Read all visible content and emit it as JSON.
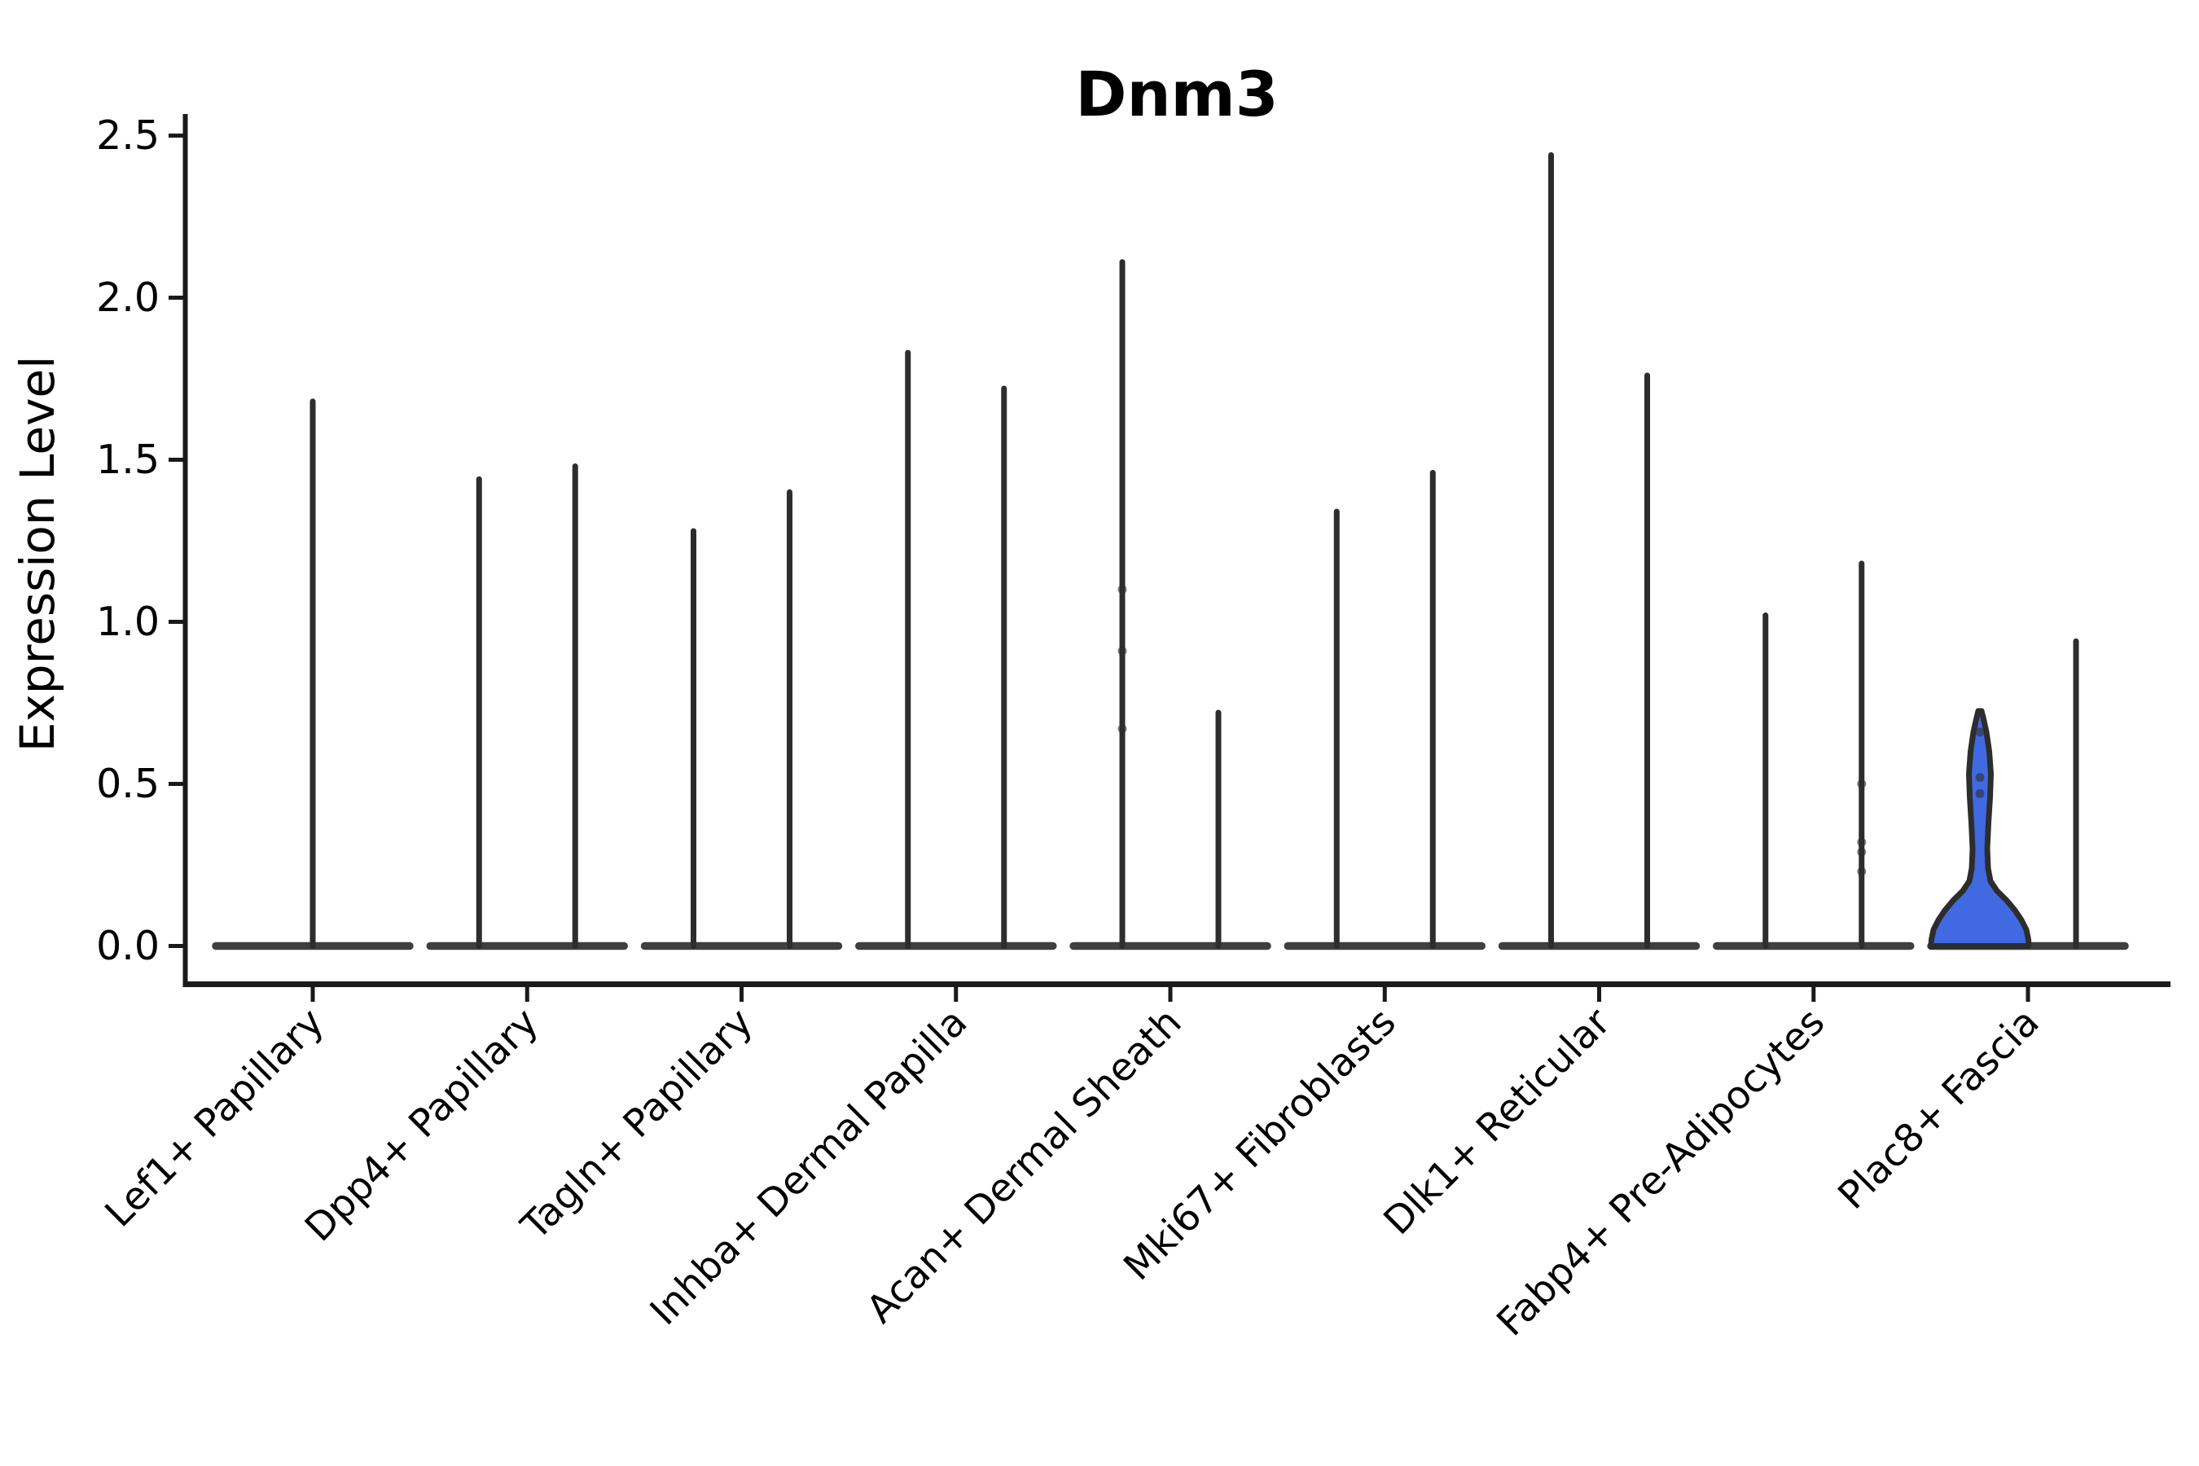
{
  "chart_data": {
    "type": "violin",
    "title": "Dnm3",
    "xlabel": "",
    "ylabel": "Expression Level",
    "ylim": [
      0,
      2.57
    ],
    "yticks": [
      0.0,
      0.5,
      1.0,
      1.5,
      2.0,
      2.5
    ],
    "grid": false,
    "legend": null,
    "categories": [
      "Lef1+ Papillary",
      "Dpp4+ Papillary",
      "Tagln+ Papillary",
      "Inhba+ Dermal Papilla",
      "Acan+ Dermal Sheath",
      "Mki67+ Fibroblasts",
      "Dlk1+ Reticular",
      "Fabp4+ Pre-Adipocytes",
      "Plac8+ Fascia"
    ],
    "violins": [
      {
        "category": "Lef1+ Papillary",
        "glyphs": [
          {
            "pos": "center",
            "max": 1.68
          }
        ]
      },
      {
        "category": "Dpp4+ Papillary",
        "glyphs": [
          {
            "pos": "left",
            "max": 1.44
          },
          {
            "pos": "right",
            "max": 1.48
          }
        ]
      },
      {
        "category": "Tagln+ Papillary",
        "glyphs": [
          {
            "pos": "left",
            "max": 1.28
          },
          {
            "pos": "right",
            "max": 1.4
          }
        ]
      },
      {
        "category": "Inhba+ Dermal Papilla",
        "glyphs": [
          {
            "pos": "left",
            "max": 1.83
          },
          {
            "pos": "right",
            "max": 1.72
          }
        ]
      },
      {
        "category": "Acan+ Dermal Sheath",
        "glyphs": [
          {
            "pos": "left",
            "max": 2.11,
            "dots": [
              1.1,
              0.91,
              0.67
            ]
          },
          {
            "pos": "right",
            "max": 0.72
          }
        ]
      },
      {
        "category": "Mki67+ Fibroblasts",
        "glyphs": [
          {
            "pos": "left",
            "max": 1.34
          },
          {
            "pos": "right",
            "max": 1.46
          }
        ]
      },
      {
        "category": "Dlk1+ Reticular",
        "glyphs": [
          {
            "pos": "left",
            "max": 2.44
          },
          {
            "pos": "right",
            "max": 1.76
          }
        ]
      },
      {
        "category": "Fabp4+ Pre-Adipocytes",
        "glyphs": [
          {
            "pos": "left",
            "max": 1.02
          },
          {
            "pos": "right",
            "max": 1.18,
            "dots": [
              0.5,
              0.32,
              0.29,
              0.23
            ]
          }
        ]
      },
      {
        "category": "Plac8+ Fascia",
        "glyphs": [
          {
            "pos": "left",
            "max": 0.72,
            "shape": "violin",
            "fill": "#4169E1",
            "profile": [
              [
                0.0,
                60
              ],
              [
                0.02,
                59.5
              ],
              [
                0.05,
                57
              ],
              [
                0.08,
                51
              ],
              [
                0.11,
                43
              ],
              [
                0.14,
                33
              ],
              [
                0.17,
                21
              ],
              [
                0.2,
                13
              ],
              [
                0.24,
                10
              ],
              [
                0.3,
                9
              ],
              [
                0.38,
                10.5
              ],
              [
                0.46,
                12.5
              ],
              [
                0.53,
                13.5
              ],
              [
                0.6,
                11.5
              ],
              [
                0.66,
                8
              ],
              [
                0.7,
                4.5
              ],
              [
                0.725,
                2
              ]
            ],
            "dots": [
              0.66,
              0.52,
              0.47
            ]
          },
          {
            "pos": "right",
            "max": 0.94
          }
        ]
      }
    ],
    "colors": {
      "spike": "#2d2d2d",
      "base_bar": "#3f3f3f",
      "violin_fill": "#4169E1",
      "axis": "#1a1a1a",
      "background": "#ffffff"
    }
  }
}
